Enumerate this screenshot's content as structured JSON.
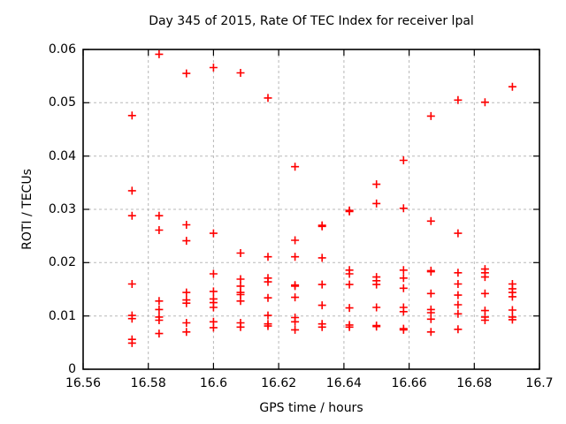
{
  "title": "Day 345 of 2015, Rate Of TEC Index for receiver lpal",
  "colors": {
    "background": "#ffffff",
    "marker": "#ff0000",
    "grid": "#b8b8b8",
    "axis": "#000000"
  },
  "chart_data": {
    "type": "scatter",
    "title": "Day 345 of 2015, Rate Of TEC Index for receiver lpal",
    "xlabel": "GPS time / hours",
    "ylabel": "ROTI / TECUs",
    "xlim": [
      16.56,
      16.7
    ],
    "ylim": [
      0,
      0.06
    ],
    "grid": true,
    "legend": "none",
    "marker": {
      "symbol": "plus",
      "color": "#ff0000",
      "size": 9
    },
    "x_ticks": [
      {
        "value": 16.56,
        "label": "16.56"
      },
      {
        "value": 16.58,
        "label": "16.58"
      },
      {
        "value": 16.6,
        "label": "16.6"
      },
      {
        "value": 16.62,
        "label": "16.62"
      },
      {
        "value": 16.64,
        "label": "16.64"
      },
      {
        "value": 16.66,
        "label": "16.66"
      },
      {
        "value": 16.68,
        "label": "16.68"
      },
      {
        "value": 16.7,
        "label": "16.7"
      }
    ],
    "y_ticks": [
      {
        "value": 0,
        "label": "0"
      },
      {
        "value": 0.01,
        "label": "0.01"
      },
      {
        "value": 0.02,
        "label": "0.02"
      },
      {
        "value": 0.03,
        "label": "0.03"
      },
      {
        "value": 0.04,
        "label": "0.04"
      },
      {
        "value": 0.05,
        "label": "0.05"
      },
      {
        "value": 0.06,
        "label": "0.06"
      }
    ],
    "series": [
      {
        "name": "ROTI",
        "points": [
          [
            16.575,
            0.0476
          ],
          [
            16.575,
            0.0335
          ],
          [
            16.575,
            0.0288
          ],
          [
            16.575,
            0.016
          ],
          [
            16.575,
            0.0101
          ],
          [
            16.575,
            0.0095
          ],
          [
            16.575,
            0.0056
          ],
          [
            16.575,
            0.0049
          ],
          [
            16.5833,
            0.0591
          ],
          [
            16.5833,
            0.0288
          ],
          [
            16.5833,
            0.0261
          ],
          [
            16.5833,
            0.0128
          ],
          [
            16.5833,
            0.0112
          ],
          [
            16.5833,
            0.0098
          ],
          [
            16.5833,
            0.0092
          ],
          [
            16.5833,
            0.0067
          ],
          [
            16.5917,
            0.0555
          ],
          [
            16.5917,
            0.0271
          ],
          [
            16.5917,
            0.0241
          ],
          [
            16.5917,
            0.0144
          ],
          [
            16.5917,
            0.013
          ],
          [
            16.5917,
            0.0124
          ],
          [
            16.5917,
            0.0087
          ],
          [
            16.5917,
            0.007
          ],
          [
            16.6,
            0.0566
          ],
          [
            16.6,
            0.0255
          ],
          [
            16.6,
            0.0179
          ],
          [
            16.6,
            0.0146
          ],
          [
            16.6,
            0.0132
          ],
          [
            16.6,
            0.0125
          ],
          [
            16.6,
            0.0116
          ],
          [
            16.6,
            0.0089
          ],
          [
            16.6,
            0.0078
          ],
          [
            16.6083,
            0.0556
          ],
          [
            16.6083,
            0.0218
          ],
          [
            16.6083,
            0.0169
          ],
          [
            16.6083,
            0.0156
          ],
          [
            16.6083,
            0.0144
          ],
          [
            16.6083,
            0.014
          ],
          [
            16.6083,
            0.0128
          ],
          [
            16.6083,
            0.0087
          ],
          [
            16.6083,
            0.0079
          ],
          [
            16.6167,
            0.0509
          ],
          [
            16.6167,
            0.0211
          ],
          [
            16.6167,
            0.0171
          ],
          [
            16.6167,
            0.0164
          ],
          [
            16.6167,
            0.0134
          ],
          [
            16.6167,
            0.0101
          ],
          [
            16.6167,
            0.0085
          ],
          [
            16.6167,
            0.0081
          ],
          [
            16.625,
            0.038
          ],
          [
            16.625,
            0.0242
          ],
          [
            16.625,
            0.0211
          ],
          [
            16.625,
            0.0158
          ],
          [
            16.625,
            0.0156
          ],
          [
            16.625,
            0.0135
          ],
          [
            16.625,
            0.0097
          ],
          [
            16.625,
            0.0089
          ],
          [
            16.625,
            0.0074
          ],
          [
            16.6333,
            0.027
          ],
          [
            16.6333,
            0.0268
          ],
          [
            16.6333,
            0.0209
          ],
          [
            16.6333,
            0.0159
          ],
          [
            16.6333,
            0.012
          ],
          [
            16.6333,
            0.0085
          ],
          [
            16.6333,
            0.0079
          ],
          [
            16.6417,
            0.0298
          ],
          [
            16.6417,
            0.0296
          ],
          [
            16.6417,
            0.0186
          ],
          [
            16.6417,
            0.0179
          ],
          [
            16.6417,
            0.0159
          ],
          [
            16.6417,
            0.0115
          ],
          [
            16.6417,
            0.0083
          ],
          [
            16.6417,
            0.0079
          ],
          [
            16.65,
            0.0347
          ],
          [
            16.65,
            0.0311
          ],
          [
            16.65,
            0.0173
          ],
          [
            16.65,
            0.0166
          ],
          [
            16.65,
            0.0159
          ],
          [
            16.65,
            0.0116
          ],
          [
            16.65,
            0.0082
          ],
          [
            16.65,
            0.008
          ],
          [
            16.6583,
            0.0392
          ],
          [
            16.6583,
            0.0302
          ],
          [
            16.6583,
            0.0186
          ],
          [
            16.6583,
            0.0171
          ],
          [
            16.6583,
            0.0152
          ],
          [
            16.6583,
            0.0116
          ],
          [
            16.6583,
            0.0108
          ],
          [
            16.6583,
            0.0076
          ],
          [
            16.6583,
            0.0074
          ],
          [
            16.6667,
            0.0475
          ],
          [
            16.6667,
            0.0278
          ],
          [
            16.6667,
            0.0185
          ],
          [
            16.6667,
            0.0183
          ],
          [
            16.6667,
            0.0142
          ],
          [
            16.6667,
            0.0112
          ],
          [
            16.6667,
            0.0106
          ],
          [
            16.6667,
            0.0094
          ],
          [
            16.6667,
            0.007
          ],
          [
            16.675,
            0.0505
          ],
          [
            16.675,
            0.0255
          ],
          [
            16.675,
            0.0181
          ],
          [
            16.675,
            0.016
          ],
          [
            16.675,
            0.0139
          ],
          [
            16.675,
            0.0121
          ],
          [
            16.675,
            0.0104
          ],
          [
            16.675,
            0.0075
          ],
          [
            16.6833,
            0.0501
          ],
          [
            16.6833,
            0.0188
          ],
          [
            16.6833,
            0.0181
          ],
          [
            16.6833,
            0.0173
          ],
          [
            16.6833,
            0.0142
          ],
          [
            16.6833,
            0.011
          ],
          [
            16.6833,
            0.0098
          ],
          [
            16.6833,
            0.0092
          ],
          [
            16.6917,
            0.053
          ],
          [
            16.6917,
            0.016
          ],
          [
            16.6917,
            0.0151
          ],
          [
            16.6917,
            0.0144
          ],
          [
            16.6917,
            0.0136
          ],
          [
            16.6917,
            0.0111
          ],
          [
            16.6917,
            0.0098
          ],
          [
            16.6917,
            0.0093
          ]
        ]
      }
    ]
  }
}
